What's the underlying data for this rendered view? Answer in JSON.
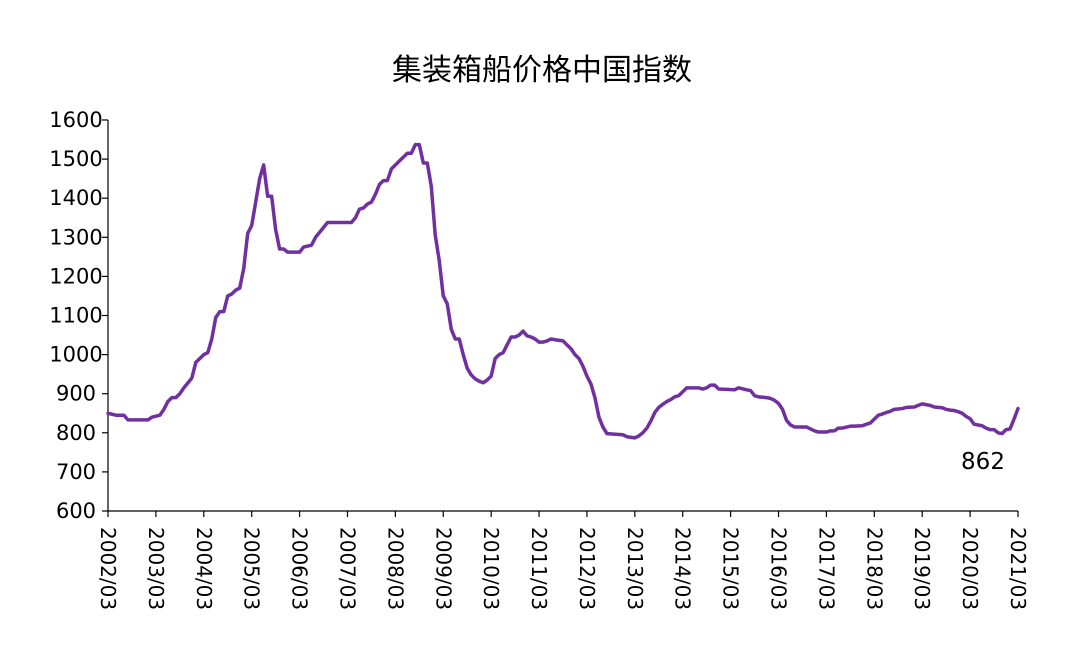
{
  "chart_data": {
    "type": "line",
    "title": "集装箱船价格中国指数",
    "xlabel": "",
    "ylabel": "",
    "ylim": [
      600,
      1600
    ],
    "yticks": [
      600,
      700,
      800,
      900,
      1000,
      1100,
      1200,
      1300,
      1400,
      1500,
      1600
    ],
    "xticks": [
      "2002/03",
      "2003/03",
      "2004/03",
      "2005/03",
      "2006/03",
      "2007/03",
      "2008/03",
      "2009/03",
      "2010/03",
      "2011/03",
      "2012/03",
      "2013/03",
      "2014/03",
      "2015/03",
      "2016/03",
      "2017/03",
      "2018/03",
      "2019/03",
      "2020/03",
      "2021/03"
    ],
    "grid": false,
    "legend": "none",
    "line_color": "#7030A0",
    "annotation": "862",
    "series": [
      {
        "points": [
          [
            "2002/03",
            850
          ],
          [
            "2002/05",
            845
          ],
          [
            "2002/07",
            845
          ],
          [
            "2002/08",
            833
          ],
          [
            "2002/10",
            833
          ],
          [
            "2003/01",
            833
          ],
          [
            "2003/02",
            840
          ],
          [
            "2003/04",
            845
          ],
          [
            "2003/05",
            860
          ],
          [
            "2003/06",
            880
          ],
          [
            "2003/07",
            890
          ],
          [
            "2003/08",
            890
          ],
          [
            "2003/09",
            900
          ],
          [
            "2003/10",
            915
          ],
          [
            "2003/12",
            940
          ],
          [
            "2004/01",
            980
          ],
          [
            "2004/02",
            990
          ],
          [
            "2004/03",
            1000
          ],
          [
            "2004/04",
            1005
          ],
          [
            "2004/05",
            1040
          ],
          [
            "2004/06",
            1095
          ],
          [
            "2004/07",
            1110
          ],
          [
            "2004/08",
            1110
          ],
          [
            "2004/09",
            1150
          ],
          [
            "2004/10",
            1155
          ],
          [
            "2004/11",
            1165
          ],
          [
            "2004/12",
            1170
          ],
          [
            "2005/01",
            1220
          ],
          [
            "2005/02",
            1310
          ],
          [
            "2005/03",
            1330
          ],
          [
            "2005/04",
            1390
          ],
          [
            "2005/05",
            1450
          ],
          [
            "2005/06",
            1485
          ],
          [
            "2005/07",
            1405
          ],
          [
            "2005/08",
            1405
          ],
          [
            "2005/09",
            1320
          ],
          [
            "2005/10",
            1270
          ],
          [
            "2005/11",
            1270
          ],
          [
            "2005/12",
            1262
          ],
          [
            "2006/02",
            1262
          ],
          [
            "2006/03",
            1262
          ],
          [
            "2006/04",
            1275
          ],
          [
            "2006/06",
            1280
          ],
          [
            "2006/07",
            1300
          ],
          [
            "2006/09",
            1325
          ],
          [
            "2006/10",
            1338
          ],
          [
            "2007/03",
            1338
          ],
          [
            "2007/04",
            1338
          ],
          [
            "2007/05",
            1350
          ],
          [
            "2007/06",
            1372
          ],
          [
            "2007/07",
            1375
          ],
          [
            "2007/08",
            1385
          ],
          [
            "2007/09",
            1390
          ],
          [
            "2007/10",
            1410
          ],
          [
            "2007/11",
            1435
          ],
          [
            "2007/12",
            1445
          ],
          [
            "2008/01",
            1445
          ],
          [
            "2008/02",
            1475
          ],
          [
            "2008/03",
            1485
          ],
          [
            "2008/04",
            1495
          ],
          [
            "2008/05",
            1505
          ],
          [
            "2008/06",
            1515
          ],
          [
            "2008/07",
            1515
          ],
          [
            "2008/08",
            1537
          ],
          [
            "2008/09",
            1537
          ],
          [
            "2008/10",
            1490
          ],
          [
            "2008/11",
            1490
          ],
          [
            "2008/12",
            1430
          ],
          [
            "2009/01",
            1305
          ],
          [
            "2009/02",
            1240
          ],
          [
            "2009/03",
            1150
          ],
          [
            "2009/04",
            1130
          ],
          [
            "2009/05",
            1065
          ],
          [
            "2009/06",
            1040
          ],
          [
            "2009/07",
            1040
          ],
          [
            "2009/08",
            1000
          ],
          [
            "2009/09",
            965
          ],
          [
            "2009/10",
            948
          ],
          [
            "2009/11",
            938
          ],
          [
            "2009/12",
            932
          ],
          [
            "2010/01",
            928
          ],
          [
            "2010/02",
            935
          ],
          [
            "2010/03",
            945
          ],
          [
            "2010/04",
            990
          ],
          [
            "2010/05",
            1000
          ],
          [
            "2010/06",
            1005
          ],
          [
            "2010/07",
            1025
          ],
          [
            "2010/08",
            1045
          ],
          [
            "2010/09",
            1045
          ],
          [
            "2010/10",
            1050
          ],
          [
            "2010/11",
            1060
          ],
          [
            "2010/12",
            1048
          ],
          [
            "2011/01",
            1045
          ],
          [
            "2011/02",
            1040
          ],
          [
            "2011/03",
            1032
          ],
          [
            "2011/04",
            1032
          ],
          [
            "2011/05",
            1035
          ],
          [
            "2011/06",
            1040
          ],
          [
            "2011/07",
            1038
          ],
          [
            "2011/09",
            1035
          ],
          [
            "2011/10",
            1025
          ],
          [
            "2011/11",
            1015
          ],
          [
            "2011/12",
            1000
          ],
          [
            "2012/01",
            990
          ],
          [
            "2012/02",
            970
          ],
          [
            "2012/03",
            945
          ],
          [
            "2012/04",
            925
          ],
          [
            "2012/05",
            890
          ],
          [
            "2012/06",
            840
          ],
          [
            "2012/07",
            815
          ],
          [
            "2012/08",
            798
          ],
          [
            "2012/12",
            795
          ],
          [
            "2013/01",
            790
          ],
          [
            "2013/03",
            787
          ],
          [
            "2013/04",
            792
          ],
          [
            "2013/05",
            800
          ],
          [
            "2013/06",
            812
          ],
          [
            "2013/07",
            830
          ],
          [
            "2013/08",
            852
          ],
          [
            "2013/09",
            865
          ],
          [
            "2013/10",
            873
          ],
          [
            "2013/11",
            880
          ],
          [
            "2013/12",
            885
          ],
          [
            "2014/01",
            892
          ],
          [
            "2014/02",
            895
          ],
          [
            "2014/03",
            905
          ],
          [
            "2014/04",
            915
          ],
          [
            "2014/07",
            915
          ],
          [
            "2014/08",
            912
          ],
          [
            "2014/09",
            915
          ],
          [
            "2014/10",
            922
          ],
          [
            "2014/11",
            922
          ],
          [
            "2014/12",
            912
          ],
          [
            "2015/04",
            910
          ],
          [
            "2015/05",
            915
          ],
          [
            "2015/07",
            910
          ],
          [
            "2015/08",
            908
          ],
          [
            "2015/09",
            895
          ],
          [
            "2015/10",
            892
          ],
          [
            "2015/12",
            890
          ],
          [
            "2016/01",
            888
          ],
          [
            "2016/02",
            883
          ],
          [
            "2016/03",
            875
          ],
          [
            "2016/04",
            860
          ],
          [
            "2016/05",
            832
          ],
          [
            "2016/06",
            820
          ],
          [
            "2016/07",
            815
          ],
          [
            "2016/10",
            815
          ],
          [
            "2016/11",
            810
          ],
          [
            "2016/12",
            805
          ],
          [
            "2017/01",
            802
          ],
          [
            "2017/03",
            802
          ],
          [
            "2017/04",
            805
          ],
          [
            "2017/05",
            805
          ],
          [
            "2017/06",
            812
          ],
          [
            "2017/07",
            812
          ],
          [
            "2017/09",
            817
          ],
          [
            "2017/10",
            817
          ],
          [
            "2017/12",
            818
          ],
          [
            "2018/01",
            822
          ],
          [
            "2018/02",
            825
          ],
          [
            "2018/03",
            835
          ],
          [
            "2018/04",
            845
          ],
          [
            "2018/05",
            848
          ],
          [
            "2018/06",
            852
          ],
          [
            "2018/07",
            855
          ],
          [
            "2018/08",
            860
          ],
          [
            "2018/10",
            862
          ],
          [
            "2018/11",
            865
          ],
          [
            "2019/01",
            866
          ],
          [
            "2019/02",
            870
          ],
          [
            "2019/03",
            874
          ],
          [
            "2019/05",
            870
          ],
          [
            "2019/06",
            866
          ],
          [
            "2019/08",
            864
          ],
          [
            "2019/09",
            860
          ],
          [
            "2019/10",
            858
          ],
          [
            "2019/11",
            857
          ],
          [
            "2019/12",
            854
          ],
          [
            "2020/01",
            850
          ],
          [
            "2020/02",
            842
          ],
          [
            "2020/03",
            836
          ],
          [
            "2020/04",
            822
          ],
          [
            "2020/06",
            818
          ],
          [
            "2020/07",
            812
          ],
          [
            "2020/08",
            808
          ],
          [
            "2020/09",
            808
          ],
          [
            "2020/10",
            800
          ],
          [
            "2020/11",
            798
          ],
          [
            "2020/12",
            808
          ],
          [
            "2021/01",
            810
          ],
          [
            "2021/02",
            835
          ],
          [
            "2021/03",
            862
          ]
        ]
      }
    ]
  }
}
